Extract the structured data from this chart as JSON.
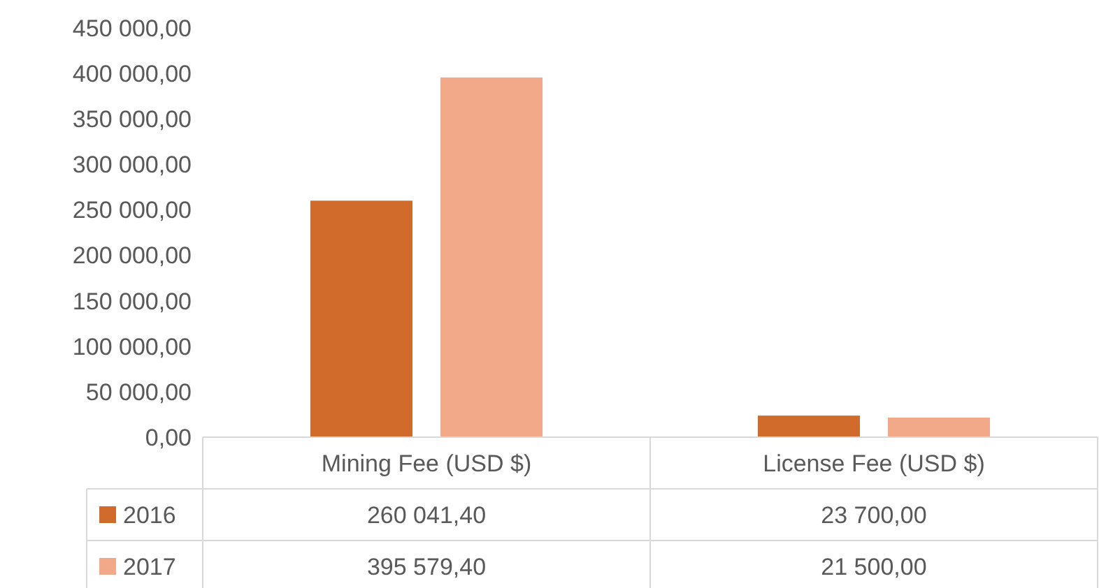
{
  "chart_data": {
    "type": "bar",
    "categories": [
      "Mining Fee (USD $)",
      "License Fee (USD $)"
    ],
    "series": [
      {
        "name": "2016",
        "color": "#d06b2b",
        "values": [
          260041.4,
          23700
        ],
        "value_labels": [
          "260 041,40",
          "23 700,00"
        ]
      },
      {
        "name": "2017",
        "color": "#f2a98a",
        "values": [
          395579.4,
          21500
        ],
        "value_labels": [
          "395 579,40",
          "21 500,00"
        ]
      }
    ],
    "ylim": [
      0,
      450000
    ],
    "yticks": [
      {
        "value": 0,
        "label": "0,00"
      },
      {
        "value": 50000,
        "label": "50 000,00"
      },
      {
        "value": 100000,
        "label": "100 000,00"
      },
      {
        "value": 150000,
        "label": "150 000,00"
      },
      {
        "value": 200000,
        "label": "200 000,00"
      },
      {
        "value": 250000,
        "label": "250 000,00"
      },
      {
        "value": 300000,
        "label": "300 000,00"
      },
      {
        "value": 350000,
        "label": "350 000,00"
      },
      {
        "value": 400000,
        "label": "400 000,00"
      },
      {
        "value": 450000,
        "label": "450 000,00"
      }
    ],
    "grid": false,
    "legend": "bottom"
  }
}
